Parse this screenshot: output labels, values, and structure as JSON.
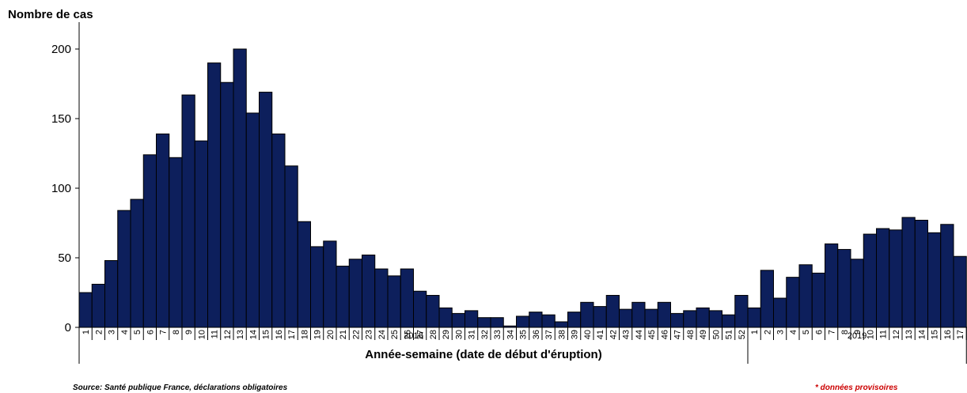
{
  "chart_data": {
    "type": "bar",
    "ylabel": "Nombre de cas",
    "xlabel": "Année-semaine (date de début d'éruption)",
    "ylim": [
      0,
      225
    ],
    "yticks": [
      0,
      50,
      100,
      150,
      200
    ],
    "grid": false,
    "bar_color": "#0d1f5c",
    "years": [
      {
        "label": "2018",
        "weeks": [
          "1",
          "2",
          "3",
          "4",
          "5",
          "6",
          "7",
          "8",
          "9",
          "10",
          "11",
          "12",
          "13",
          "14",
          "15",
          "16",
          "17",
          "18",
          "19",
          "20",
          "21",
          "22",
          "23",
          "24",
          "25",
          "26",
          "27",
          "28",
          "29",
          "30",
          "31",
          "32",
          "33",
          "34",
          "35",
          "36",
          "37",
          "38",
          "39",
          "40",
          "41",
          "42",
          "43",
          "44",
          "45",
          "46",
          "47",
          "48",
          "49",
          "50",
          "51",
          "52"
        ]
      },
      {
        "label": "2019",
        "weeks": [
          "1",
          "2",
          "3",
          "4",
          "5",
          "6",
          "7",
          "8",
          "9",
          "10",
          "11",
          "12",
          "13",
          "14",
          "15",
          "16",
          "17"
        ]
      }
    ],
    "values": [
      25,
      31,
      48,
      84,
      92,
      124,
      139,
      122,
      167,
      134,
      190,
      176,
      200,
      154,
      169,
      139,
      116,
      76,
      58,
      62,
      44,
      49,
      52,
      42,
      37,
      42,
      26,
      23,
      14,
      10,
      12,
      7,
      7,
      1,
      8,
      11,
      9,
      4,
      11,
      18,
      15,
      23,
      13,
      18,
      13,
      18,
      10,
      12,
      14,
      12,
      9,
      23,
      14,
      41,
      21,
      36,
      45,
      39,
      60,
      56,
      49,
      67,
      71,
      70,
      79,
      77,
      68,
      74,
      51
    ]
  },
  "footer": {
    "source": "Source: Santé publique France, déclarations obligatoires",
    "note": "* données provisoires",
    "note_color": "#cc0000"
  }
}
